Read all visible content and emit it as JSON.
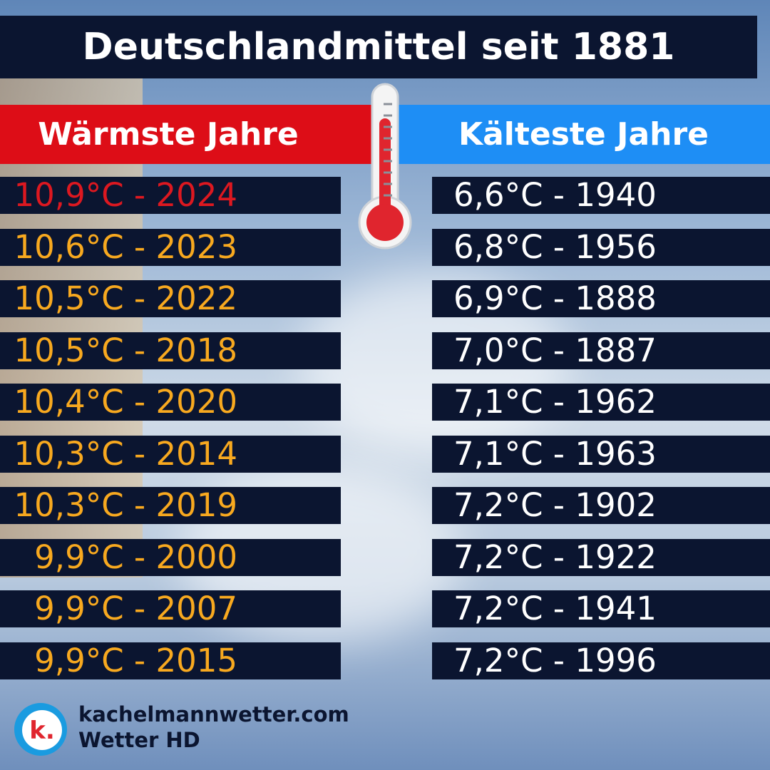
{
  "title": "Deutschlandmittel seit 1881",
  "warmest": {
    "header": "Wärmste Jahre",
    "rows": [
      "10,9°C - 2024",
      "10,6°C - 2023",
      "10,5°C - 2022",
      "10,5°C - 2018",
      "10,4°C - 2020",
      "10,3°C - 2014",
      "10,3°C - 2019",
      "9,9°C - 2000",
      "9,9°C - 2007",
      "9,9°C - 2015"
    ]
  },
  "coldest": {
    "header": "Kälteste Jahre",
    "rows": [
      "6,6°C - 1940",
      "6,8°C - 1956",
      "6,9°C - 1888",
      "7,0°C - 1887",
      "7,1°C - 1962",
      "7,1°C - 1963",
      "7,2°C - 1902",
      "7,2°C - 1922",
      "7,2°C - 1941",
      "7,2°C - 1996"
    ]
  },
  "footer": {
    "site": "kachelmannwetter.com",
    "product": "Wetter HD"
  }
}
